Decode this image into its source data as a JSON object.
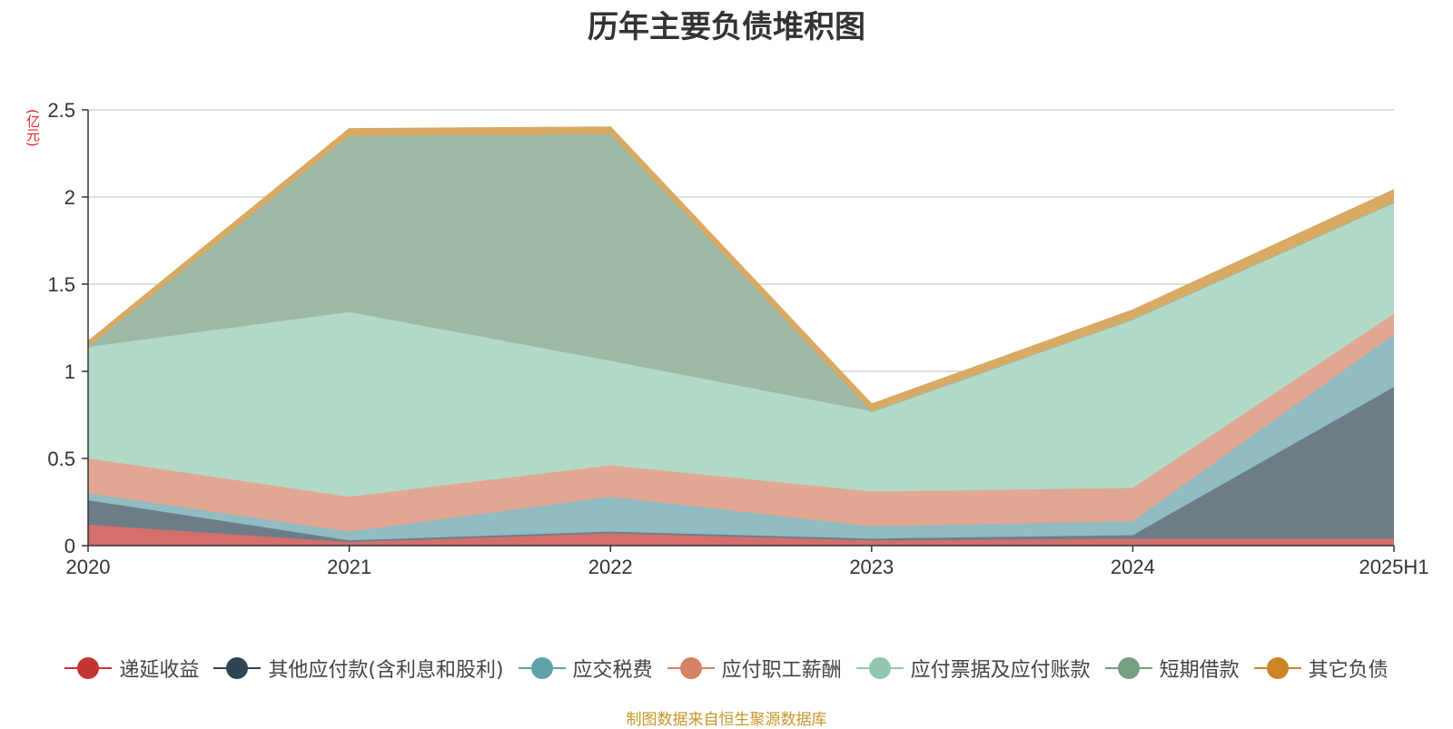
{
  "colors": {
    "unit": "#e8231f",
    "source": "#c8962a",
    "axis": "#333333",
    "grid": "#cccccc"
  },
  "chart_data": {
    "type": "area",
    "title": "历年主要负债堆积图",
    "unit_label": "(亿元)",
    "source_note": "制图数据来自恒生聚源数据库",
    "categories": [
      "2020",
      "2021",
      "2022",
      "2023",
      "2024",
      "2025H1"
    ],
    "ylim": [
      0,
      2.5
    ],
    "yticks": [
      "0",
      "0.5",
      "1",
      "1.5",
      "2",
      "2.5"
    ],
    "ytick_values": [
      0,
      0.5,
      1,
      1.5,
      2,
      2.5
    ],
    "grid": true,
    "legend_position": "bottom",
    "stacked": true,
    "series": [
      {
        "name": "递延收益",
        "color": "#c23531",
        "fill": "#d46f6c",
        "values": [
          0.12,
          0.02,
          0.07,
          0.03,
          0.04,
          0.04
        ]
      },
      {
        "name": "其他应付款(含利息和股利)",
        "color": "#2f4554",
        "fill": "#6d7d87",
        "values": [
          0.14,
          0.01,
          0.01,
          0.01,
          0.02,
          0.87
        ]
      },
      {
        "name": "应交税费",
        "color": "#61a0a8",
        "fill": "#90bcc2",
        "values": [
          0.04,
          0.05,
          0.2,
          0.07,
          0.08,
          0.3
        ]
      },
      {
        "name": "应付职工薪酬",
        "color": "#d48265",
        "fill": "#e1a793",
        "values": [
          0.2,
          0.2,
          0.18,
          0.2,
          0.19,
          0.12
        ]
      },
      {
        "name": "应付票据及应付账款",
        "color": "#91c7ae",
        "fill": "#b2d8c6",
        "values": [
          0.64,
          1.06,
          0.6,
          0.46,
          0.97,
          0.64
        ]
      },
      {
        "name": "短期借款",
        "color": "#749f83",
        "fill": "#9eb9a8",
        "values": [
          0.0,
          1.01,
          1.3,
          0.0,
          0.0,
          0.0
        ]
      },
      {
        "name": "其它负债",
        "color": "#ca8622",
        "fill": "#d9aa64",
        "values": [
          0.03,
          0.04,
          0.04,
          0.04,
          0.05,
          0.07
        ]
      }
    ]
  }
}
